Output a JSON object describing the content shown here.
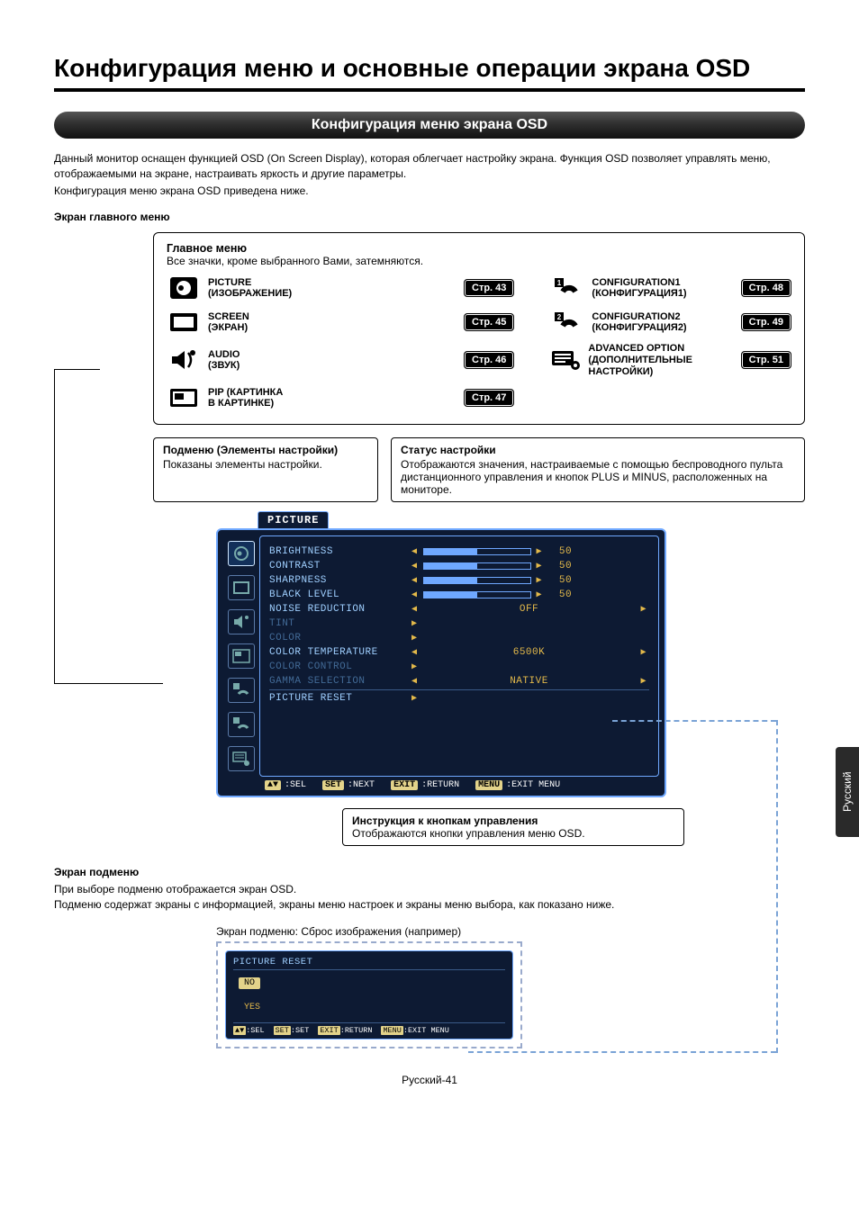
{
  "title": "Конфигурация меню и основные операции экрана OSD",
  "banner": "Конфигурация меню экрана OSD",
  "intro": {
    "p1": "Данный монитор оснащен функцией OSD (On Screen Display), которая облегчает настройку экрана. Функция OSD позволяет управлять меню, отображаемыми на экране, настраивать яркость и другие параметры.",
    "p2": "Конфигурация меню экрана OSD приведена ниже."
  },
  "main_cap": "Экран главного меню",
  "mainmenu": {
    "title": "Главное меню",
    "sub": "Все значки, кроме выбранного Вами, затемняются.",
    "items_left": [
      {
        "l1": "PICTURE",
        "l2": "(ИЗОБРАЖЕНИЕ)",
        "page": "Стр. 43",
        "icon": "picture"
      },
      {
        "l1": "SCREEN",
        "l2": "(ЭКРАН)",
        "page": "Стр. 45",
        "icon": "screen"
      },
      {
        "l1": "AUDIO",
        "l2": "(ЗВУК)",
        "page": "Стр. 46",
        "icon": "audio"
      },
      {
        "l1": "PIP (КАРТИНКА",
        "l2": "В КАРТИНКЕ)",
        "page": "Стр. 47",
        "icon": "pip"
      }
    ],
    "items_right": [
      {
        "l1": "CONFIGURATION1",
        "l2": "(КОНФИГУРАЦИЯ1)",
        "page": "Стр. 48",
        "icon": "conf1"
      },
      {
        "l1": "CONFIGURATION2",
        "l2": "(КОНФИГУРАЦИЯ2)",
        "page": "Стр. 49",
        "icon": "conf2"
      },
      {
        "l1": "ADVANCED OPTION",
        "l2": "(ДОПОЛНИТЕЛЬНЫЕ НАСТРОЙКИ)",
        "page": "Стр. 51",
        "icon": "adv"
      }
    ]
  },
  "sub_left": {
    "t": "Подменю (Элементы настройки)",
    "b": "Показаны элементы настройки."
  },
  "sub_right": {
    "t": "Статус настройки",
    "b": "Отображаются значения, настраиваемые с помощью беспроводного пульта дистанционного управления и кнопок PLUS и MINUS, расположенных на мониторе."
  },
  "osd": {
    "tab": "PICTURE",
    "lines": [
      {
        "lbl": "BRIGHTNESS",
        "type": "bar",
        "pct": 50,
        "val": "50"
      },
      {
        "lbl": "CONTRAST",
        "type": "bar",
        "pct": 50,
        "val": "50"
      },
      {
        "lbl": "SHARPNESS",
        "type": "bar",
        "pct": 50,
        "val": "50"
      },
      {
        "lbl": "BLACK LEVEL",
        "type": "bar",
        "pct": 50,
        "val": "50"
      },
      {
        "lbl": "NOISE REDUCTION",
        "type": "enum",
        "val": "OFF"
      },
      {
        "lbl": "TINT",
        "type": "arrow_only",
        "dim": true
      },
      {
        "lbl": "COLOR",
        "type": "arrow_only",
        "dim": true
      },
      {
        "lbl": "COLOR TEMPERATURE",
        "type": "enum",
        "val": "6500K"
      },
      {
        "lbl": "COLOR CONTROL",
        "type": "arrow_only",
        "dim": true
      },
      {
        "lbl": "GAMMA SELECTION",
        "type": "enum",
        "val": "NATIVE",
        "dim": true
      },
      {
        "lbl": "PICTURE RESET",
        "type": "arrow_only",
        "hr": true
      }
    ],
    "foot": [
      {
        "k": "▲▼",
        "t": ":SEL"
      },
      {
        "k": "SET",
        "t": ":NEXT"
      },
      {
        "k": "EXIT",
        "t": ":RETURN"
      },
      {
        "k": "MENU",
        "t": ":EXIT MENU"
      }
    ],
    "side_icons": [
      "picture",
      "screen",
      "audio",
      "pip",
      "conf1",
      "conf2",
      "adv"
    ],
    "colors": {
      "bg": "#0d1a33",
      "border": "#6fa8ff",
      "text": "#9fcfff",
      "accent": "#e3b94a"
    }
  },
  "instr": {
    "t": "Инструкция к кнопкам управления",
    "b": "Отображаются кнопки управления меню OSD."
  },
  "sub_section": {
    "cap": "Экран подменю",
    "p1": "При выборе подменю отображается экран OSD.",
    "p2": "Подменю содержат экраны с информацией, экраны меню настроек и экраны меню выбора, как показано ниже."
  },
  "osd2_caption": "Экран подменю: Сброс изображения (например)",
  "osd2": {
    "title": "PICTURE RESET",
    "opts": [
      {
        "t": "NO",
        "sel": true
      },
      {
        "t": "YES",
        "sel": false
      }
    ],
    "foot": [
      {
        "k": "▲▼",
        "t": ":SEL"
      },
      {
        "k": "SET",
        "t": ":SET"
      },
      {
        "k": "EXIT",
        "t": ":RETURN"
      },
      {
        "k": "MENU",
        "t": ":EXIT MENU"
      }
    ]
  },
  "footer": "Русский-41",
  "lang_tab": "Русский"
}
